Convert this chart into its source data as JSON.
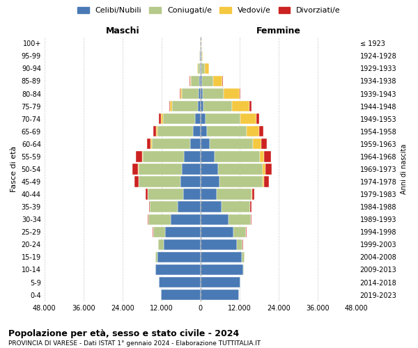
{
  "age_groups": [
    "0-4",
    "5-9",
    "10-14",
    "15-19",
    "20-24",
    "25-29",
    "30-34",
    "35-39",
    "40-44",
    "45-49",
    "50-54",
    "55-59",
    "60-64",
    "65-69",
    "70-74",
    "75-79",
    "80-84",
    "85-89",
    "90-94",
    "95-99",
    "100+"
  ],
  "birth_years": [
    "2019-2023",
    "2014-2018",
    "2009-2013",
    "2004-2008",
    "1999-2003",
    "1994-1998",
    "1989-1993",
    "1984-1988",
    "1979-1983",
    "1974-1978",
    "1969-1973",
    "1964-1968",
    "1959-1963",
    "1954-1958",
    "1949-1953",
    "1944-1948",
    "1939-1943",
    "1934-1938",
    "1929-1933",
    "1924-1928",
    "≤ 1923"
  ],
  "male": {
    "celibi": [
      12200,
      12800,
      13800,
      13200,
      11200,
      10800,
      9200,
      7000,
      5400,
      6200,
      5800,
      5000,
      3200,
      2400,
      1700,
      900,
      500,
      350,
      200,
      180,
      80
    ],
    "coniugati": [
      10,
      30,
      150,
      700,
      1800,
      3800,
      6800,
      8600,
      10800,
      12800,
      13200,
      12800,
      11800,
      10800,
      9800,
      7800,
      5200,
      2500,
      700,
      150,
      30
    ],
    "vedovi": [
      0,
      0,
      0,
      2,
      5,
      8,
      15,
      30,
      40,
      80,
      130,
      180,
      280,
      480,
      580,
      580,
      550,
      380,
      180,
      40,
      5
    ],
    "divorziati": [
      0,
      0,
      0,
      15,
      40,
      80,
      180,
      280,
      550,
      1150,
      1750,
      1950,
      1150,
      780,
      750,
      380,
      180,
      90,
      40,
      15,
      3
    ]
  },
  "female": {
    "nubili": [
      11800,
      12200,
      13200,
      12800,
      11200,
      10200,
      8600,
      6400,
      4900,
      5900,
      5400,
      4400,
      2900,
      1950,
      1450,
      950,
      650,
      450,
      280,
      180,
      80
    ],
    "coniugate": [
      10,
      30,
      150,
      700,
      1800,
      3800,
      6800,
      8800,
      10800,
      13300,
      13800,
      13800,
      13300,
      12300,
      10800,
      8800,
      6400,
      3400,
      1150,
      280,
      60
    ],
    "vedove": [
      0,
      0,
      0,
      3,
      8,
      15,
      40,
      80,
      130,
      380,
      780,
      1450,
      2400,
      3900,
      4900,
      5400,
      4900,
      2900,
      1150,
      280,
      40
    ],
    "divorziate": [
      0,
      0,
      0,
      15,
      40,
      80,
      180,
      380,
      680,
      1450,
      1950,
      2150,
      1750,
      1180,
      980,
      580,
      380,
      180,
      70,
      25,
      3
    ]
  },
  "colors": {
    "celibi": "#4a7ab5",
    "coniugati": "#b5c98a",
    "vedovi": "#f5c842",
    "divorziati": "#cc2222"
  },
  "xlim": 48000,
  "xticks": [
    -48000,
    -36000,
    -24000,
    -12000,
    0,
    12000,
    24000,
    36000,
    48000
  ],
  "xtick_labels": [
    "48.000",
    "36.000",
    "24.000",
    "12.000",
    "0",
    "12.000",
    "24.000",
    "36.000",
    "48.000"
  ],
  "title": "Popolazione per età, sesso e stato civile - 2024",
  "subtitle": "PROVINCIA DI VARESE - Dati ISTAT 1° gennaio 2024 - Elaborazione TUTTITALIA.IT",
  "ylabel_left": "Fasce di età",
  "ylabel_right": "Anni di nascita",
  "label_maschi": "Maschi",
  "label_femmine": "Femmine",
  "legend_labels": [
    "Celibi/Nubili",
    "Coniugati/e",
    "Vedovi/e",
    "Divorziati/e"
  ],
  "background_color": "#ffffff",
  "grid_color": "#cccccc"
}
